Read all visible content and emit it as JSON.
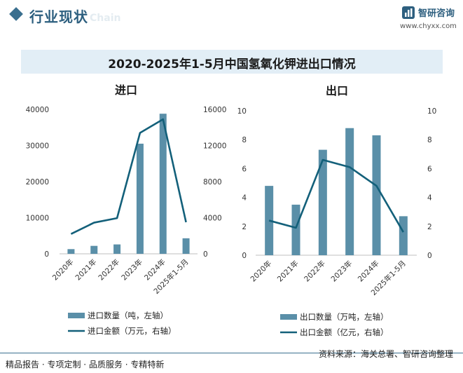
{
  "header": {
    "title": "行业现状",
    "ghost": "Chain",
    "brand_name": "智研咨询",
    "brand_url": "www.chyxx.com",
    "accent": "#2d5f7f"
  },
  "main_title": "2020-2025年1-5月中国氢氧化钾进出口情况",
  "chart_data": [
    {
      "type": "bar+line",
      "title": "进口",
      "categories": [
        "2020年",
        "2021年",
        "2022年",
        "2023年",
        "2024年",
        "2025年1-5月"
      ],
      "bar_series": {
        "name": "进口数量（吨，左轴）",
        "values": [
          1300,
          2200,
          2600,
          30500,
          38800,
          4300
        ],
        "color": "#5a8fa8"
      },
      "line_series": {
        "name": "进口金额（万元，右轴）",
        "values": [
          2200,
          3450,
          3950,
          13400,
          14900,
          3500
        ],
        "color": "#13607a"
      },
      "y_left": {
        "min": 0,
        "max": 40000,
        "ticks": [
          0,
          10000,
          20000,
          30000,
          40000
        ]
      },
      "y_right": {
        "min": 0,
        "max": 16000,
        "ticks": [
          0,
          4000,
          8000,
          12000,
          16000
        ]
      },
      "legend": "bottom"
    },
    {
      "type": "bar+line",
      "title": "出口",
      "categories": [
        "2020年",
        "2021年",
        "2022年",
        "2023年",
        "2024年",
        "2025年1-5月"
      ],
      "bar_series": {
        "name": "出口数量（万吨，左轴）",
        "values": [
          4.8,
          3.5,
          7.3,
          8.8,
          8.3,
          2.7
        ],
        "color": "#5a8fa8"
      },
      "line_series": {
        "name": "出口金额（亿元，右轴）",
        "values": [
          2.4,
          1.9,
          6.6,
          6.1,
          4.8,
          1.6
        ],
        "color": "#13607a"
      },
      "y_left": {
        "min": 0,
        "max": 10,
        "ticks": [
          0,
          2,
          4,
          6,
          8,
          10
        ]
      },
      "y_right": {
        "min": 0,
        "max": 10,
        "ticks": [
          0,
          2,
          4,
          6,
          8,
          10
        ]
      },
      "legend": "bottom"
    }
  ],
  "footer": {
    "left": "精品报告 · 专项定制 · 品质服务 · 专精特新",
    "source": "资料来源：海关总署、智研咨询整理"
  }
}
